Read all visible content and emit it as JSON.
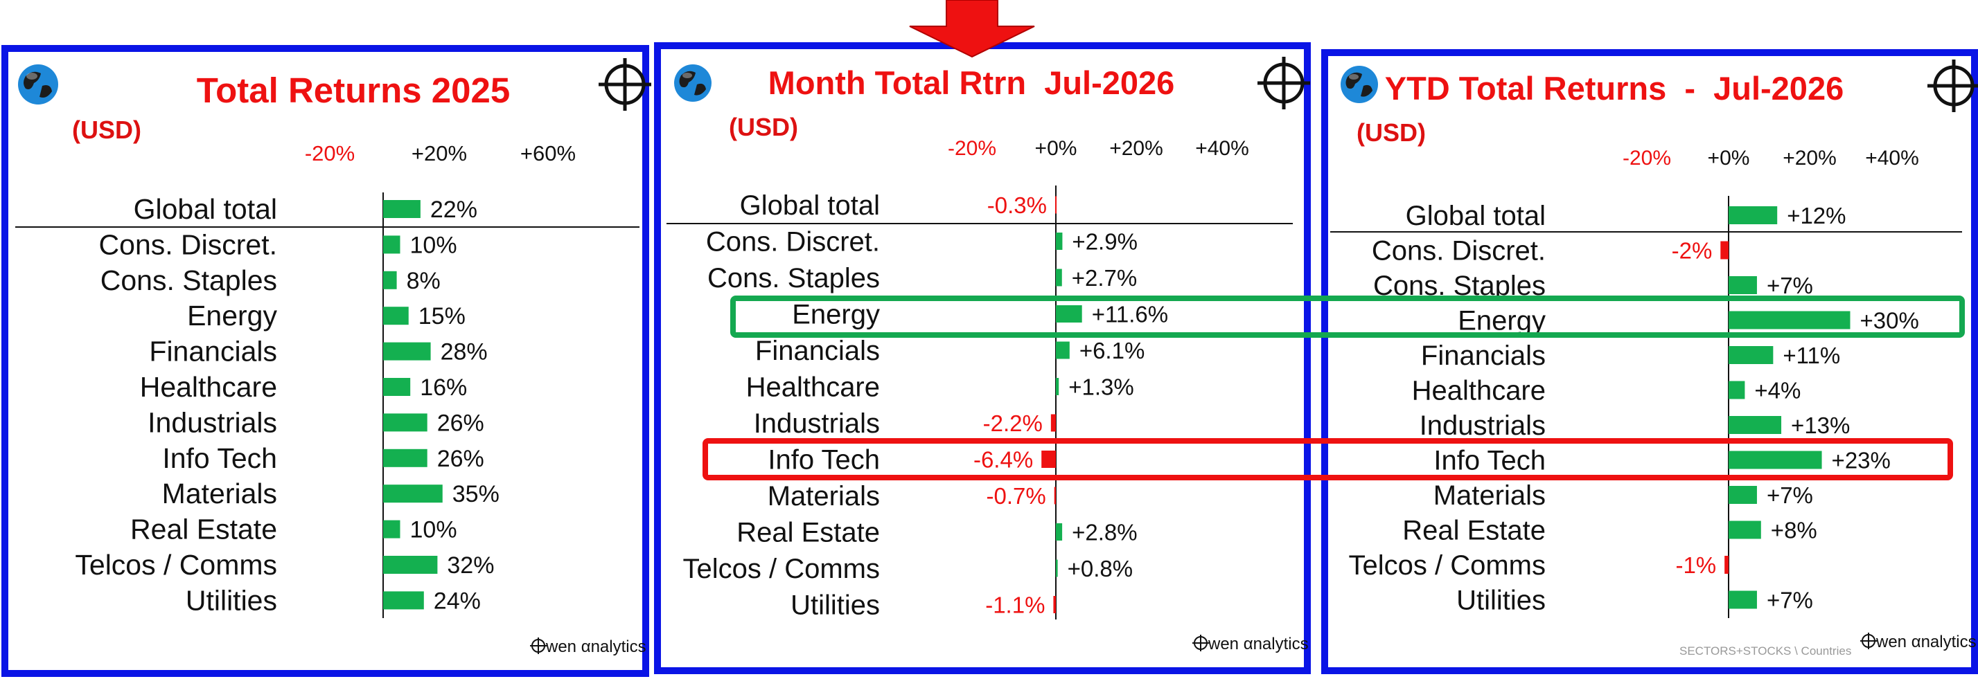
{
  "colors": {
    "frame": "#0a14e6",
    "positive_bar": "#14b050",
    "negative_bar": "#ee1111",
    "title": "#ee1111",
    "highlight_energy": "#14a850",
    "highlight_infotech": "#ee1111"
  },
  "icons": [
    "globe-icon",
    "crosshair-icon",
    "down-arrow-icon"
  ],
  "footer_text": "SECTORS+STOCKS \\ Countries",
  "brand_text": "wen αnalytics",
  "chart_data": [
    {
      "type": "bar",
      "orientation": "horizontal",
      "title": "Total Returns 2025",
      "subtitle": "(USD)",
      "ticks": [
        "-20%",
        "+20%",
        "+60%"
      ],
      "tick_values": [
        -20,
        20,
        60
      ],
      "categories": [
        "Global total",
        "Cons. Discret.",
        "Cons. Staples",
        "Energy",
        "Financials",
        "Healthcare",
        "Industrials",
        "Info Tech",
        "Materials",
        "Real Estate",
        "Telcos / Comms",
        "Utilities"
      ],
      "values": [
        22,
        10,
        8,
        15,
        28,
        16,
        26,
        26,
        35,
        10,
        32,
        24
      ],
      "labels": [
        "22%",
        "10%",
        "8%",
        "15%",
        "28%",
        "16%",
        "26%",
        "26%",
        "35%",
        "10%",
        "32%",
        "24%"
      ],
      "xlim": [
        -30,
        90
      ],
      "grid": false
    },
    {
      "type": "bar",
      "orientation": "horizontal",
      "title": "Month Total Rtrn  Jul-2026",
      "subtitle": "(USD)",
      "ticks": [
        "-20%",
        "+0%",
        "+20%",
        "+40%"
      ],
      "tick_values": [
        -20,
        0,
        20,
        40
      ],
      "categories": [
        "Global total",
        "Cons. Discret.",
        "Cons. Staples",
        "Energy",
        "Financials",
        "Healthcare",
        "Industrials",
        "Info Tech",
        "Materials",
        "Real Estate",
        "Telcos / Comms",
        "Utilities"
      ],
      "values": [
        -0.3,
        2.9,
        2.7,
        11.6,
        6.1,
        1.3,
        -2.2,
        -6.4,
        -0.7,
        2.8,
        0.8,
        -1.1
      ],
      "labels": [
        "-0.3%",
        "+2.9%",
        "+2.7%",
        "+11.6%",
        "+6.1%",
        "+1.3%",
        "-2.2%",
        "-6.4%",
        "-0.7%",
        "+2.8%",
        "+0.8%",
        "-1.1%"
      ],
      "xlim": [
        -45,
        60
      ],
      "grid": false,
      "highlighted": [
        "Energy",
        "Info Tech"
      ]
    },
    {
      "type": "bar",
      "orientation": "horizontal",
      "title": "YTD Total Returns  -  Jul-2026",
      "subtitle": "(USD)",
      "ticks": [
        "-20%",
        "+0%",
        "+20%",
        "+40%"
      ],
      "tick_values": [
        -20,
        0,
        20,
        40
      ],
      "categories": [
        "Global total",
        "Cons. Discret.",
        "Cons. Staples",
        "Energy",
        "Financials",
        "Healthcare",
        "Industrials",
        "Info Tech",
        "Materials",
        "Real Estate",
        "Telcos / Comms",
        "Utilities"
      ],
      "values": [
        12,
        -2,
        7,
        30,
        11,
        4,
        13,
        23,
        7,
        8,
        -1,
        7
      ],
      "labels": [
        "+12%",
        "-2%",
        "+7%",
        "+30%",
        "+11%",
        "+4%",
        "+13%",
        "+23%",
        "+7%",
        "+8%",
        "-1%",
        "+7%"
      ],
      "xlim": [
        -30,
        70
      ],
      "grid": false,
      "highlighted": [
        "Energy",
        "Info Tech"
      ]
    }
  ]
}
